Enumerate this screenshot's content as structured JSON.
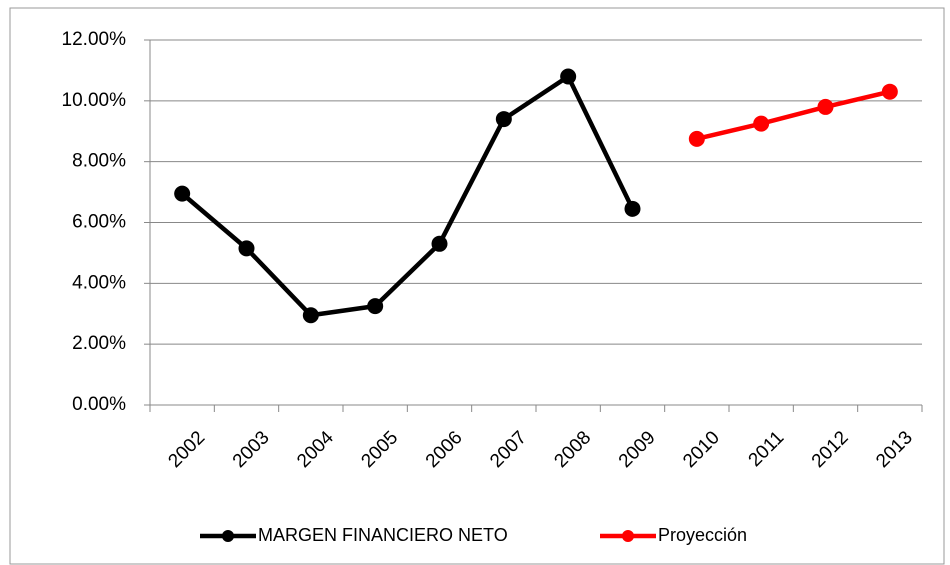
{
  "chart_data": {
    "type": "line",
    "categories": [
      "2002",
      "2003",
      "2004",
      "2005",
      "2006",
      "2007",
      "2008",
      "2009",
      "2010",
      "2011",
      "2012",
      "2013"
    ],
    "series": [
      {
        "name": "MARGEN FINANCIERO NETO",
        "color": "#000000",
        "values": [
          6.95,
          5.15,
          2.95,
          3.25,
          5.3,
          9.4,
          10.8,
          6.45,
          null,
          null,
          null,
          null
        ]
      },
      {
        "name": "Proyección",
        "color": "#ff0000",
        "values": [
          null,
          null,
          null,
          null,
          null,
          null,
          null,
          null,
          8.75,
          9.25,
          9.8,
          10.3
        ]
      }
    ],
    "ylim": [
      0,
      12
    ],
    "yticks": [
      {
        "value": 0,
        "label": "0.00%"
      },
      {
        "value": 2,
        "label": "2.00%"
      },
      {
        "value": 4,
        "label": "4.00%"
      },
      {
        "value": 6,
        "label": "6.00%"
      },
      {
        "value": 8,
        "label": "8.00%"
      },
      {
        "value": 10,
        "label": "10.00%"
      },
      {
        "value": 12,
        "label": "12.00%"
      }
    ],
    "grid": true,
    "legend": "bottom"
  }
}
